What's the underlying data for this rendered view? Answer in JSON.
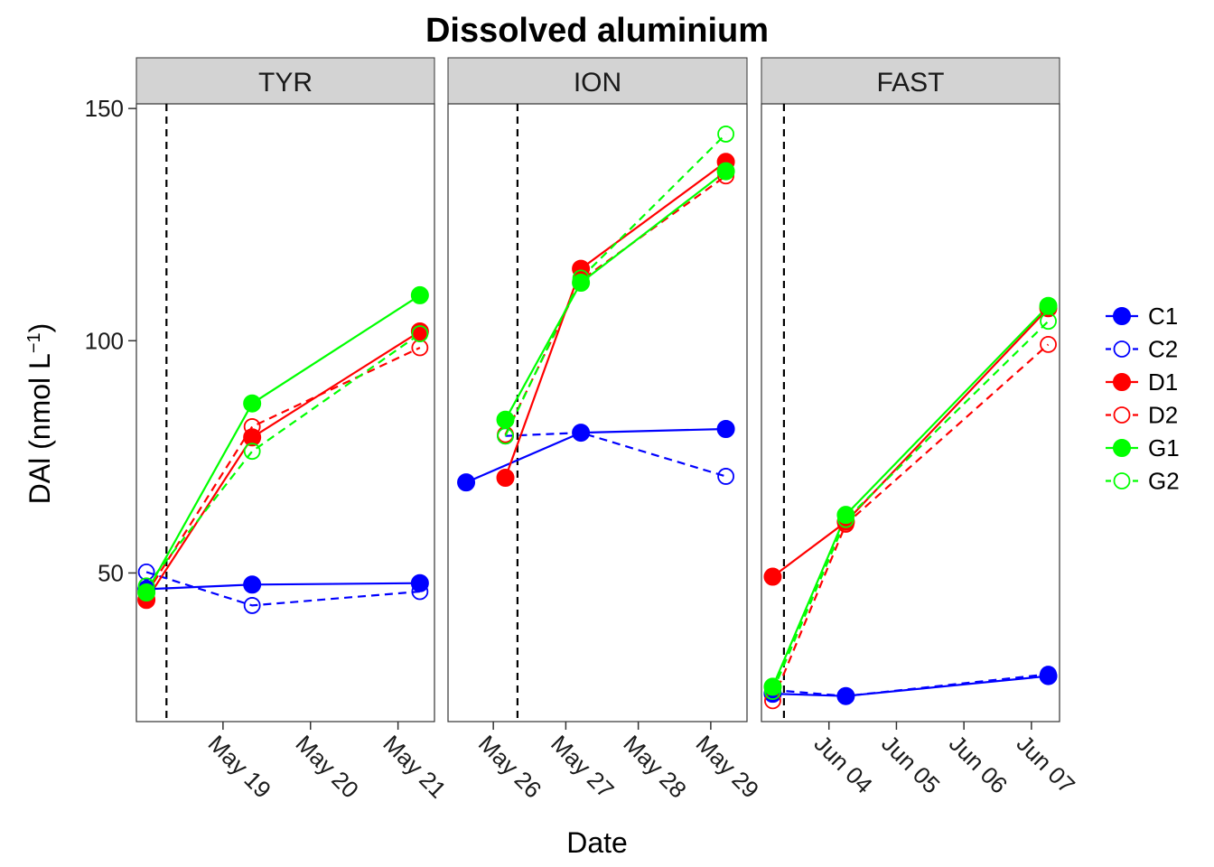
{
  "chart_data": {
    "type": "line",
    "title": "Dissolved aluminium",
    "xlabel": "Date",
    "ylabel": "DAl (nmol L",
    "ylabel_exponent": "−1",
    "ylabel_close": ")",
    "ylim": [
      18,
      151
    ],
    "yticks": [
      50,
      100,
      150
    ],
    "grid": false,
    "legend_position": "right",
    "colors": {
      "C": "#0000ff",
      "D": "#ff0000",
      "G": "#00ff00"
    },
    "panels": [
      {
        "label": "TYR",
        "xlim": [
          "2013-05-18T00:15",
          "2013-05-21T10:00"
        ],
        "event_date": "2013-05-18T08:30",
        "ticks": [
          {
            "date": "2013-05-19T00:00",
            "label": "May 19"
          },
          {
            "date": "2013-05-20T00:00",
            "label": "May 20"
          },
          {
            "date": "2013-05-21T00:00",
            "label": "May 21"
          }
        ],
        "series": [
          {
            "name": "C1",
            "x": [
              "2013-05-18T03:00",
              "2013-05-19T08:00",
              "2013-05-21T06:00"
            ],
            "y": [
              46.5,
              47.5,
              47.8
            ]
          },
          {
            "name": "C2",
            "x": [
              "2013-05-18T03:00",
              "2013-05-19T08:00",
              "2013-05-21T06:00"
            ],
            "y": [
              50.2,
              43.0,
              46.0
            ]
          },
          {
            "name": "D1",
            "x": [
              "2013-05-18T03:00",
              "2013-05-19T08:00",
              "2013-05-21T06:00"
            ],
            "y": [
              44.2,
              79.2,
              102.0
            ]
          },
          {
            "name": "D2",
            "x": [
              "2013-05-18T03:00",
              "2013-05-19T08:00",
              "2013-05-21T06:00"
            ],
            "y": [
              45.5,
              81.5,
              98.5
            ]
          },
          {
            "name": "G1",
            "x": [
              "2013-05-18T03:00",
              "2013-05-19T08:00",
              "2013-05-21T06:00"
            ],
            "y": [
              45.8,
              86.5,
              109.8
            ]
          },
          {
            "name": "G2",
            "x": [
              "2013-05-18T03:00",
              "2013-05-19T08:00",
              "2013-05-21T06:00"
            ],
            "y": [
              47.2,
              76.2,
              101.5
            ]
          }
        ]
      },
      {
        "label": "ION",
        "xlim": [
          "2013-05-25T09:00",
          "2013-05-29T12:00"
        ],
        "event_date": "2013-05-26T08:00",
        "ticks": [
          {
            "date": "2013-05-26T00:00",
            "label": "May 26"
          },
          {
            "date": "2013-05-27T00:00",
            "label": "May 27"
          },
          {
            "date": "2013-05-28T00:00",
            "label": "May 28"
          },
          {
            "date": "2013-05-29T00:00",
            "label": "May 29"
          }
        ],
        "series": [
          {
            "name": "C1",
            "x": [
              "2013-05-25T15:00",
              "2013-05-27T05:00",
              "2013-05-29T05:00"
            ],
            "y": [
              69.5,
              80.2,
              81.0
            ]
          },
          {
            "name": "C2",
            "x": [
              "2013-05-26T04:00",
              "2013-05-27T05:00",
              "2013-05-29T05:00"
            ],
            "y": [
              79.5,
              80.2,
              70.8
            ]
          },
          {
            "name": "D1",
            "x": [
              "2013-05-26T04:00",
              "2013-05-27T05:00",
              "2013-05-29T05:00"
            ],
            "y": [
              70.5,
              115.5,
              138.5
            ]
          },
          {
            "name": "D2",
            "x": [
              "2013-05-26T04:00",
              "2013-05-27T05:00",
              "2013-05-29T05:00"
            ],
            "y": [
              79.8,
              113.0,
              135.5
            ]
          },
          {
            "name": "G1",
            "x": [
              "2013-05-26T04:00",
              "2013-05-27T05:00",
              "2013-05-29T05:00"
            ],
            "y": [
              83.0,
              112.5,
              136.5
            ]
          },
          {
            "name": "G2",
            "x": [
              "2013-05-26T04:00",
              "2013-05-27T05:00",
              "2013-05-29T05:00"
            ],
            "y": [
              79.5,
              113.5,
              144.5
            ]
          }
        ]
      },
      {
        "label": "FAST",
        "xlim": [
          "2013-06-03T00:00",
          "2013-06-07T10:00"
        ],
        "event_date": "2013-06-03T08:00",
        "ticks": [
          {
            "date": "2013-06-04T00:00",
            "label": "Jun 04"
          },
          {
            "date": "2013-06-05T00:00",
            "label": "Jun 05"
          },
          {
            "date": "2013-06-06T00:00",
            "label": "Jun 06"
          },
          {
            "date": "2013-06-07T00:00",
            "label": "Jun 07"
          }
        ],
        "series": [
          {
            "name": "C1",
            "x": [
              "2013-06-03T04:00",
              "2013-06-04T06:00",
              "2013-06-07T06:00"
            ],
            "y": [
              24.0,
              23.5,
              27.8
            ]
          },
          {
            "name": "C2",
            "x": [
              "2013-06-03T04:00",
              "2013-06-04T06:00",
              "2013-06-07T06:00"
            ],
            "y": [
              24.8,
              23.5,
              28.2
            ]
          },
          {
            "name": "D1",
            "x": [
              "2013-06-03T04:00",
              "2013-06-04T06:00",
              "2013-06-07T06:00"
            ],
            "y": [
              49.2,
              61.0,
              107.0
            ]
          },
          {
            "name": "D2",
            "x": [
              "2013-06-03T04:00",
              "2013-06-04T06:00",
              "2013-06-07T06:00"
            ],
            "y": [
              22.5,
              60.5,
              99.2
            ]
          },
          {
            "name": "G1",
            "x": [
              "2013-06-03T04:00",
              "2013-06-04T06:00",
              "2013-06-07T06:00"
            ],
            "y": [
              25.5,
              62.5,
              107.5
            ]
          },
          {
            "name": "G2",
            "x": [
              "2013-06-03T04:00",
              "2013-06-04T06:00",
              "2013-06-07T06:00"
            ],
            "y": [
              24.5,
              61.5,
              104.2
            ]
          }
        ]
      }
    ],
    "series_styles": [
      {
        "name": "C1",
        "group": "C",
        "filled": true,
        "dashed": false
      },
      {
        "name": "C2",
        "group": "C",
        "filled": false,
        "dashed": true
      },
      {
        "name": "D1",
        "group": "D",
        "filled": true,
        "dashed": false
      },
      {
        "name": "D2",
        "group": "D",
        "filled": false,
        "dashed": true
      },
      {
        "name": "G1",
        "group": "G",
        "filled": true,
        "dashed": false
      },
      {
        "name": "G2",
        "group": "G",
        "filled": false,
        "dashed": true
      }
    ]
  }
}
